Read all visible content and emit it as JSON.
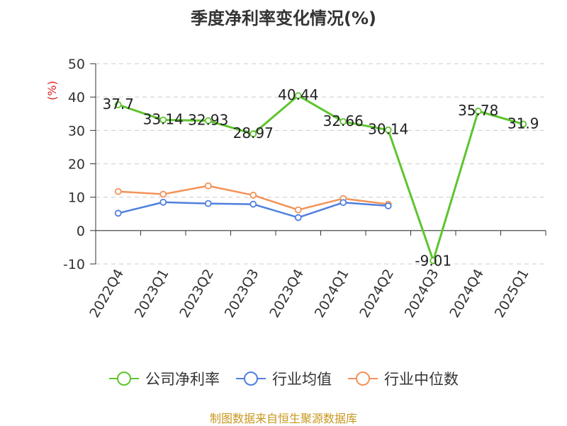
{
  "chart_data": {
    "type": "line",
    "title": "季度净利率变化情况(%)",
    "ylabel": "(%)",
    "xlabel": "",
    "ylim": [
      -10,
      50
    ],
    "yticks": [
      -10,
      0,
      10,
      20,
      30,
      40,
      50
    ],
    "grid": true,
    "legend_placement": "bottom",
    "categories": [
      "2022Q4",
      "2023Q1",
      "2023Q2",
      "2023Q3",
      "2023Q4",
      "2024Q1",
      "2024Q2",
      "2024Q3",
      "2024Q4",
      "2025Q1"
    ],
    "series": [
      {
        "name": "公司净利率",
        "color": "#5ec42f",
        "values": [
          37.7,
          33.14,
          32.93,
          28.97,
          40.44,
          32.66,
          30.14,
          -9.01,
          35.78,
          31.9
        ],
        "labels": true
      },
      {
        "name": "行业均值",
        "color": "#4f7fde",
        "values": [
          5.2,
          8.5,
          8.1,
          7.9,
          3.9,
          8.4,
          7.4,
          null,
          null,
          null
        ],
        "labels": false
      },
      {
        "name": "行业中位数",
        "color": "#f39258",
        "values": [
          11.7,
          10.9,
          13.4,
          10.6,
          6.2,
          9.6,
          7.9,
          null,
          null,
          null
        ],
        "labels": false
      }
    ]
  },
  "footer": {
    "source": "制图数据来自恒生聚源数据库"
  }
}
